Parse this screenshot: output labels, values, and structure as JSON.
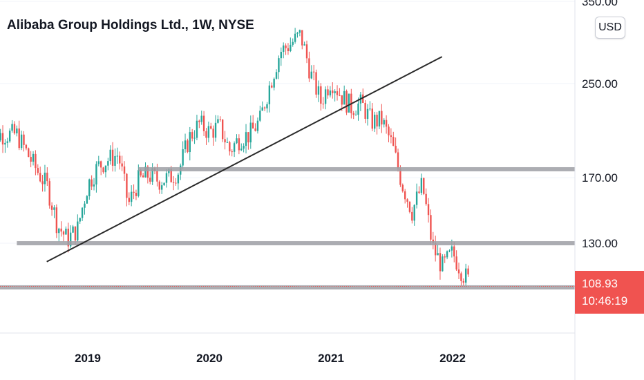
{
  "header": {
    "title": "Alibaba Group Holdings Ltd., 1W, NYSE",
    "currency": "USD"
  },
  "price_badge": {
    "price": "108.93",
    "countdown": "10:46:19",
    "color": "#f05350"
  },
  "colors": {
    "up": "#26a69a",
    "down": "#ef5350",
    "level_line": "#9e9fa4",
    "trend_line": "#2a2a2a"
  },
  "chart_data": {
    "type": "candlestick",
    "title": "Alibaba Group Holdings Ltd., 1W, NYSE",
    "x_ticks": [
      "2019",
      "2020",
      "2021",
      "2022"
    ],
    "y_ticks": [
      "350.00",
      "250.00",
      "170.00",
      "130.00"
    ],
    "y_scale": "log",
    "ylim": [
      90,
      352
    ],
    "last_price": 108.93,
    "horizontal_levels": [
      176,
      130,
      108.5
    ],
    "trend_line": {
      "from": [
        "2018-11",
        124
      ],
      "to": [
        "2021-11",
        279
      ]
    },
    "series": [
      {
        "date": "2018-06",
        "close": 203
      },
      {
        "date": "2018-07",
        "close": 188
      },
      {
        "date": "2018-08",
        "close": 175
      },
      {
        "date": "2018-09",
        "close": 164
      },
      {
        "date": "2018-10",
        "close": 140
      },
      {
        "date": "2018-11",
        "close": 132
      },
      {
        "date": "2018-12",
        "close": 138
      },
      {
        "date": "2019-01",
        "close": 165
      },
      {
        "date": "2019-02",
        "close": 178
      },
      {
        "date": "2019-03",
        "close": 183
      },
      {
        "date": "2019-04",
        "close": 187
      },
      {
        "date": "2019-05",
        "close": 152
      },
      {
        "date": "2019-06",
        "close": 168
      },
      {
        "date": "2019-07",
        "close": 172
      },
      {
        "date": "2019-08",
        "close": 168
      },
      {
        "date": "2019-09",
        "close": 170
      },
      {
        "date": "2019-10",
        "close": 175
      },
      {
        "date": "2019-11",
        "close": 200
      },
      {
        "date": "2019-12",
        "close": 212
      },
      {
        "date": "2020-01",
        "close": 205
      },
      {
        "date": "2020-02",
        "close": 210
      },
      {
        "date": "2020-03",
        "close": 190
      },
      {
        "date": "2020-04",
        "close": 200
      },
      {
        "date": "2020-05",
        "close": 203
      },
      {
        "date": "2020-06",
        "close": 215
      },
      {
        "date": "2020-07",
        "close": 250
      },
      {
        "date": "2020-08",
        "close": 285
      },
      {
        "date": "2020-09",
        "close": 294
      },
      {
        "date": "2020-10",
        "close": 305
      },
      {
        "date": "2020-11",
        "close": 260
      },
      {
        "date": "2020-12",
        "close": 232
      },
      {
        "date": "2021-01",
        "close": 254
      },
      {
        "date": "2021-02",
        "close": 238
      },
      {
        "date": "2021-03",
        "close": 227
      },
      {
        "date": "2021-04",
        "close": 230
      },
      {
        "date": "2021-05",
        "close": 214
      },
      {
        "date": "2021-06",
        "close": 215
      },
      {
        "date": "2021-07",
        "close": 195
      },
      {
        "date": "2021-08",
        "close": 166
      },
      {
        "date": "2021-09",
        "close": 148
      },
      {
        "date": "2021-10",
        "close": 165
      },
      {
        "date": "2021-11",
        "close": 128
      },
      {
        "date": "2021-12",
        "close": 118
      },
      {
        "date": "2022-01",
        "close": 125
      },
      {
        "date": "2022-02",
        "close": 115
      },
      {
        "date": "2022-03",
        "close": 108.93
      }
    ]
  }
}
